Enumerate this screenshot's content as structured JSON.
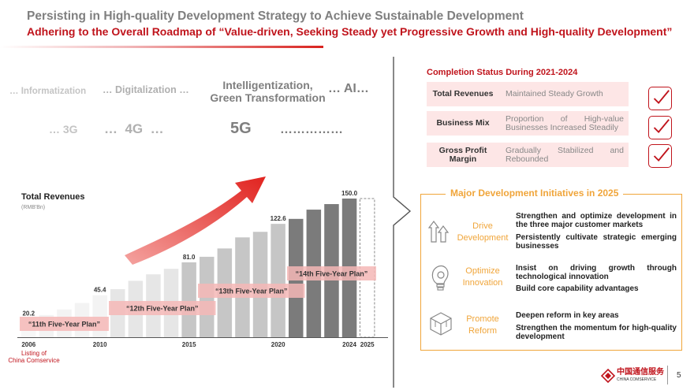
{
  "header": {
    "title": "Persisting in High-quality Development Strategy to Achieve Sustainable Development",
    "subtitle": "Adhering to the Overall Roadmap of “Value-driven, Seeking Steady yet Progressive Growth and High-quality Development”"
  },
  "eras": {
    "informatization": "… Informatization",
    "digitalization": "… Digitalization …",
    "intelligent_line1": "Intelligentization,",
    "intelligent_line2": "Green Transformation",
    "ai": "… AI…",
    "g3": "… 3G",
    "g4": "…  4G  …",
    "g5": "5G",
    "dots": "……………"
  },
  "revenue": {
    "title": "Total Revenues",
    "unit": "(RMB'Bn)",
    "listing_label_line1": "Listing of",
    "listing_label_line2": "China Comservice",
    "plans": [
      "“11th Five-Year Plan”",
      "“12th Five-Year Plan”",
      "“13th Five-Year Plan”",
      "“14th Five-Year Plan”"
    ],
    "year_labels": [
      "2006",
      "2010",
      "2015",
      "2020",
      "2024",
      "2025"
    ]
  },
  "chart_data": {
    "type": "bar",
    "categories": [
      "2006",
      "2007",
      "2008",
      "2009",
      "2010",
      "2011",
      "2012",
      "2013",
      "2014",
      "2015",
      "2016",
      "2017",
      "2018",
      "2019",
      "2020",
      "2021",
      "2022",
      "2023",
      "2024",
      "2025"
    ],
    "values": [
      20.2,
      24,
      30,
      37,
      45.4,
      52,
      61,
      68,
      74,
      81.0,
      87,
      96,
      108,
      114,
      122.6,
      128,
      138,
      144,
      150.0,
      null
    ],
    "labels_shown": {
      "2006": "20.2",
      "2010": "45.4",
      "2015": "81.0",
      "2020": "122.6",
      "2024": "150.0"
    },
    "title": "Total Revenues",
    "ylabel": "(RMB'Bn)",
    "ylim": [
      0,
      160
    ]
  },
  "completion": {
    "title": "Completion Status During 2021-2024",
    "rows": [
      {
        "label": "Total Revenues",
        "text": "Maintained Steady Growth"
      },
      {
        "label": "Business Mix",
        "text": "Proportion of High-value Businesses Increased Steadily"
      },
      {
        "label": "Gross Profit Margin",
        "text": "Gradually Stabilized and Rebounded"
      }
    ]
  },
  "initiatives": {
    "title": "Major Development Initiatives in 2025",
    "items": [
      {
        "head_line1": "Drive",
        "head_line2": "Development",
        "icon": "growth-arrows-icon",
        "bullets": [
          "Strengthen and optimize development in the three major customer markets",
          "Persistently cultivate strategic emerging businesses"
        ]
      },
      {
        "head_line1": "Optimize",
        "head_line2": "Innovation",
        "icon": "lightbulb-gear-icon",
        "bullets": [
          "Insist on driving growth through technological innovation",
          "Build core capability advantages"
        ]
      },
      {
        "head_line1": "Promote",
        "head_line2": "Reform",
        "icon": "cube-icon",
        "bullets": [
          "Deepen reform in key areas",
          "Strengthen the momentum for high-quality development"
        ]
      }
    ]
  },
  "footer": {
    "logo_cn": "中国通信服务",
    "logo_en": "CHINA COMSERVICE",
    "page_number": "5"
  },
  "colors": {
    "brand_red": "#c0141c",
    "accent_orange": "#f0a53a",
    "pink_bg": "#fde6e6"
  }
}
